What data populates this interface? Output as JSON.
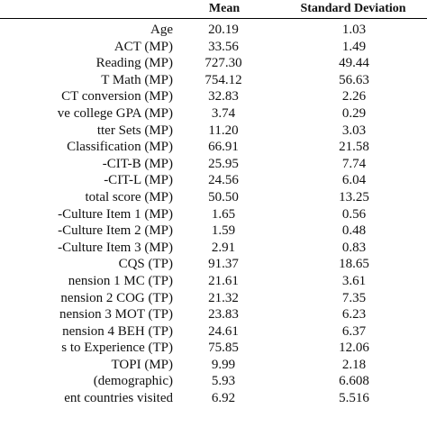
{
  "columns": {
    "mean": "Mean",
    "sd": "Standard Deviation"
  },
  "rows": [
    {
      "label": "Age",
      "mean": "20.19",
      "sd": "1.03"
    },
    {
      "label": "ACT (MP)",
      "mean": "33.56",
      "sd": "1.49"
    },
    {
      "label": "Reading (MP)",
      "mean": "727.30",
      "sd": "49.44"
    },
    {
      "label": "T Math (MP)",
      "mean": "754.12",
      "sd": "56.63"
    },
    {
      "label": "CT conversion (MP)",
      "mean": "32.83",
      "sd": "2.26"
    },
    {
      "label": "ve college GPA (MP)",
      "mean": "3.74",
      "sd": "0.29"
    },
    {
      "label": "tter Sets (MP)",
      "mean": "11.20",
      "sd": "3.03"
    },
    {
      "label": "Classification (MP)",
      "mean": "66.91",
      "sd": "21.58"
    },
    {
      "label": "-CIT-B (MP)",
      "mean": "25.95",
      "sd": "7.74"
    },
    {
      "label": "-CIT-L (MP)",
      "mean": "24.56",
      "sd": "6.04"
    },
    {
      "label": "total score (MP)",
      "mean": "50.50",
      "sd": "13.25"
    },
    {
      "label": "-Culture Item 1 (MP)",
      "mean": "1.65",
      "sd": "0.56"
    },
    {
      "label": "-Culture Item 2 (MP)",
      "mean": "1.59",
      "sd": "0.48"
    },
    {
      "label": "-Culture Item 3 (MP)",
      "mean": "2.91",
      "sd": "0.83"
    },
    {
      "label": "CQS (TP)",
      "mean": "91.37",
      "sd": "18.65"
    },
    {
      "label": "nension 1 MC (TP)",
      "mean": "21.61",
      "sd": "3.61"
    },
    {
      "label": "nension 2 COG (TP)",
      "mean": "21.32",
      "sd": "7.35"
    },
    {
      "label": "nension 3 MOT (TP)",
      "mean": "23.83",
      "sd": "6.23"
    },
    {
      "label": "nension 4 BEH (TP)",
      "mean": "24.61",
      "sd": "6.37"
    },
    {
      "label": "s to Experience (TP)",
      "mean": "75.85",
      "sd": "12.06"
    },
    {
      "label": "TOPI (MP)",
      "mean": "9.99",
      "sd": "2.18"
    },
    {
      "label": "(demographic)",
      "mean": "5.93",
      "sd": "6.608"
    },
    {
      "label": "ent countries visited",
      "mean": "6.92",
      "sd": "5.516"
    }
  ]
}
